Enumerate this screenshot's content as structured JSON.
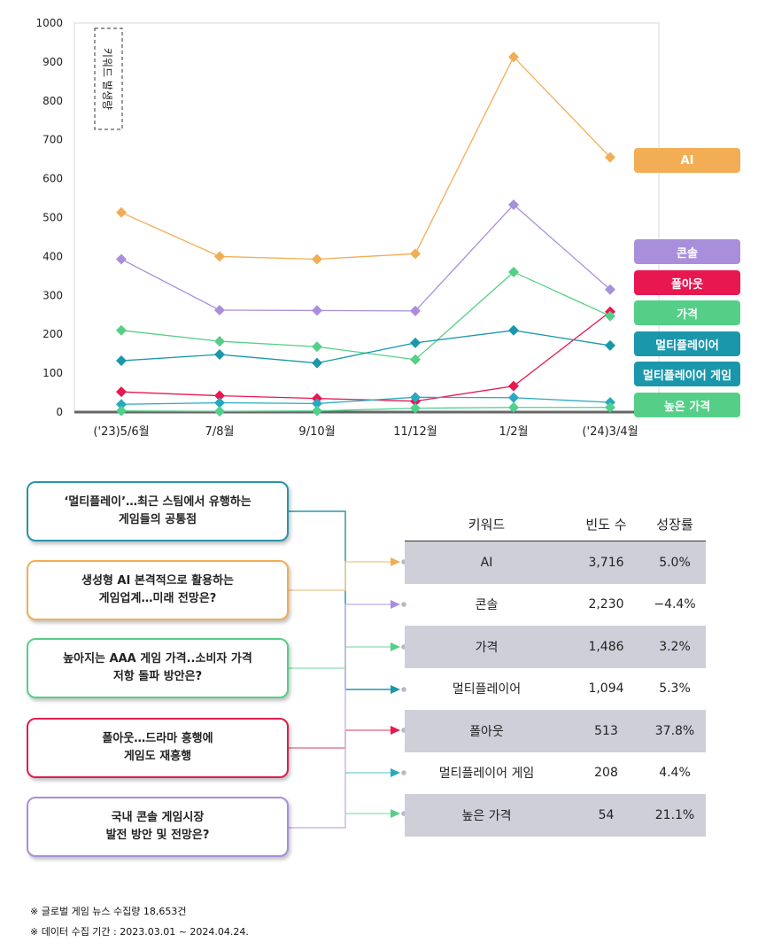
{
  "chart_data": {
    "type": "line",
    "categories": [
      "('23)5/6월",
      "7/8월",
      "9/10월",
      "11/12월",
      "1/2월",
      "('24)3/4월"
    ],
    "ylim": [
      0,
      1000
    ],
    "yticks": [
      0,
      100,
      200,
      300,
      400,
      500,
      600,
      700,
      800,
      900,
      1000
    ],
    "ylabel": "키워드 발생량",
    "series": [
      {
        "name": "AI",
        "color": "#f2ad55",
        "values": [
          513,
          400,
          393,
          407,
          913,
          655
        ]
      },
      {
        "name": "콘솔",
        "color": "#a98fdb",
        "values": [
          393,
          262,
          261,
          260,
          533,
          315
        ]
      },
      {
        "name": "폴아웃",
        "color": "#e8174f",
        "values": [
          52,
          42,
          35,
          28,
          67,
          258
        ]
      },
      {
        "name": "가격",
        "color": "#55cf87",
        "values": [
          210,
          182,
          168,
          135,
          360,
          247
        ]
      },
      {
        "name": "멀티플레이어",
        "color": "#1b97ac",
        "values": [
          132,
          148,
          126,
          178,
          210,
          171
        ]
      },
      {
        "name": "멀티플레이어 게임",
        "color": "#29a9bf",
        "values": [
          20,
          24,
          22,
          38,
          37,
          25
        ]
      },
      {
        "name": "높은 가격",
        "color": "#4fd08e",
        "values": [
          3,
          2,
          3,
          10,
          12,
          12
        ]
      }
    ]
  },
  "legend": [
    {
      "label": "AI",
      "color": "#f2ad55"
    },
    {
      "label": "콘솔",
      "color": "#a98fdb"
    },
    {
      "label": "폴아웃",
      "color": "#e8174f"
    },
    {
      "label": "가격",
      "color": "#55cf87"
    },
    {
      "label": "멀티플레이어",
      "color": "#1b97ac"
    },
    {
      "label": "멀티플레이어 게임",
      "color": "#1b97ac"
    },
    {
      "label": "높은 가격",
      "color": "#55cf87"
    }
  ],
  "news": [
    {
      "text": "‘멀티플레이’…최근 스팀에서 유행하는\n게임들의 공통점",
      "color": "#2a95a6"
    },
    {
      "text": "생성형 AI 본격적으로 활용하는\n게임업계…미래 전망은?",
      "color": "#f2ad55"
    },
    {
      "text": "높아지는 AAA 게임 가격..소비자 가격\n저항 돌파 방안은?",
      "color": "#55cf87"
    },
    {
      "text": "폴아웃…드라마 흥행에\n게임도 재흥행",
      "color": "#d9204f"
    },
    {
      "text": "국내 콘솔 게임시장\n발전 방안 및 전망은?",
      "color": "#a98fdb"
    }
  ],
  "table": {
    "headers": [
      "키워드",
      "빈도 수",
      "성장률"
    ],
    "rows": [
      {
        "keyword": "AI",
        "freq": "3,716",
        "growth": "5.0%"
      },
      {
        "keyword": "콘솔",
        "freq": "2,230",
        "growth": "−4.4%"
      },
      {
        "keyword": "가격",
        "freq": "1,486",
        "growth": "3.2%"
      },
      {
        "keyword": "멀티플레이어",
        "freq": "1,094",
        "growth": "5.3%"
      },
      {
        "keyword": "폴아웃",
        "freq": "513",
        "growth": "37.8%"
      },
      {
        "keyword": "멀티플레이어 게임",
        "freq": "208",
        "growth": "4.4%"
      },
      {
        "keyword": "높은 가격",
        "freq": "54",
        "growth": "21.1%"
      }
    ]
  },
  "connector_colors": [
    "#f2ad55",
    "#a98fdb",
    "#55cf87",
    "#1b97ac",
    "#e8174f",
    "#29a9bf",
    "#55cf87"
  ],
  "footnotes": [
    "※ 글로벌 게임 뉴스 수집량 18,653건",
    "※ 데이터 수집 기간 : 2023.03.01 ~ 2024.04.24."
  ]
}
